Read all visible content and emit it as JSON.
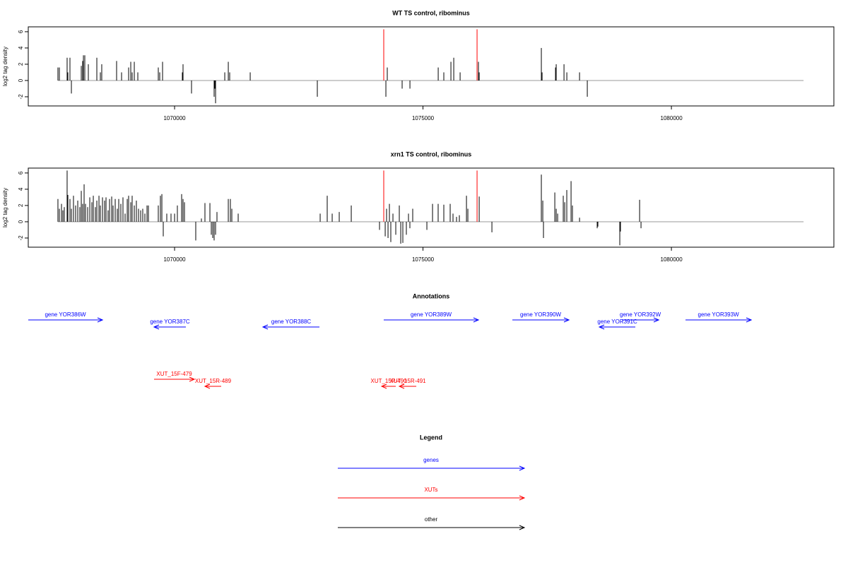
{
  "chart_data": [
    {
      "type": "spike",
      "title": "WT TS control, ribominus",
      "y_label": "log2 tag density",
      "xlim": [
        1067055,
        1083270
      ],
      "ylim": [
        -3.13,
        6.6
      ],
      "xticks": [
        1070000,
        1075000,
        1080000
      ],
      "yticks": [
        -2,
        0,
        2,
        4,
        6
      ],
      "baseline_x": [
        1067652,
        1082660
      ],
      "series": [
        {
          "color": "#000000",
          "x": [
            1067652,
            1067681,
            1067837,
            1067852,
            1067894,
            1067923,
            1068122,
            1068150,
            1068165,
            1068193,
            1068264,
            1068435,
            1068506,
            1068534,
            1068833,
            1068933,
            1069075,
            1069118,
            1069146,
            1069189,
            1069260,
            1069672,
            1069701,
            1069758,
            1070156,
            1070170,
            1070341,
            1070796,
            1070810,
            1070825,
            1071010,
            1071081,
            1071109,
            1071522,
            1072873,
            1074253,
            1074281,
            1074580,
            1074737,
            1075306,
            1075419,
            1075562,
            1075619,
            1075747,
            1076116,
            1076131,
            1077382,
            1077397,
            1077667,
            1077681,
            1077838,
            1077895,
            1078151,
            1078307
          ],
          "values": [
            1.6,
            1.6,
            2.8,
            1.0,
            2.8,
            -1.6,
            1.8,
            2.4,
            3.1,
            3.1,
            2.0,
            2.8,
            1.0,
            2.0,
            2.4,
            1.0,
            1.6,
            2.3,
            1.0,
            2.3,
            1.0,
            1.6,
            1.0,
            2.3,
            1.0,
            2.0,
            -1.6,
            -2.0,
            -1.0,
            -2.8,
            1.0,
            2.3,
            1.0,
            1.0,
            -2.0,
            -2.0,
            1.6,
            -1.0,
            -1.0,
            1.6,
            1.0,
            2.3,
            2.8,
            1.0,
            2.3,
            1.0,
            4.0,
            1.0,
            1.6,
            2.0,
            2.0,
            1.0,
            1.0,
            -2.0
          ]
        },
        {
          "color": "#ff0000",
          "x": [
            1074210,
            1076088
          ],
          "values": [
            6.3,
            6.3
          ]
        }
      ]
    },
    {
      "type": "spike",
      "title": "xrn1 TS control, ribominus",
      "y_label": "log2 tag density",
      "xlim": [
        1067055,
        1083270
      ],
      "ylim": [
        -3.13,
        6.6
      ],
      "xticks": [
        1070000,
        1075000,
        1080000
      ],
      "yticks": [
        -2,
        0,
        2,
        4,
        6
      ],
      "baseline_x": [
        1067652,
        1082660
      ],
      "series": [
        {
          "color": "#000000",
          "x": [
            1067652,
            1067681,
            1067724,
            1067752,
            1067780,
            1067837,
            1067852,
            1067894,
            1067923,
            1067965,
            1068008,
            1068051,
            1068093,
            1068122,
            1068150,
            1068179,
            1068207,
            1068250,
            1068293,
            1068335,
            1068364,
            1068406,
            1068435,
            1068478,
            1068506,
            1068549,
            1068591,
            1068620,
            1068662,
            1068691,
            1068734,
            1068762,
            1068805,
            1068847,
            1068876,
            1068918,
            1068961,
            1069004,
            1069047,
            1069075,
            1069118,
            1069146,
            1069189,
            1069231,
            1069274,
            1069317,
            1069359,
            1069402,
            1069445,
            1069473,
            1069672,
            1069715,
            1069744,
            1069772,
            1069843,
            1069928,
            1070000,
            1070056,
            1070142,
            1070170,
            1070199,
            1070426,
            1070540,
            1070611,
            1070711,
            1070739,
            1070768,
            1070796,
            1070825,
            1070853,
            1071081,
            1071123,
            1071152,
            1071280,
            1072930,
            1073072,
            1073172,
            1073314,
            1073556,
            1074125,
            1074239,
            1074267,
            1074296,
            1074324,
            1074352,
            1074395,
            1074452,
            1074523,
            1074552,
            1074594,
            1074665,
            1074708,
            1074736,
            1074793,
            1075078,
            1075192,
            1075305,
            1075419,
            1075547,
            1075604,
            1075675,
            1075732,
            1075875,
            1075903,
            1076131,
            1076387,
            1077382,
            1077411,
            1077425,
            1077653,
            1077681,
            1077710,
            1077823,
            1077852,
            1077894,
            1077980,
            1078008,
            1078151,
            1078506,
            1078520,
            1078961,
            1078975,
            1079360,
            1079388
          ],
          "values": [
            2.8,
            1.6,
            2.2,
            1.4,
            1.8,
            6.3,
            3.3,
            2.8,
            1.6,
            3.2,
            2.0,
            2.6,
            1.8,
            3.8,
            2.2,
            4.6,
            2.2,
            1.8,
            3.0,
            2.4,
            3.2,
            1.8,
            2.6,
            3.2,
            2.0,
            3.0,
            2.6,
            3.0,
            1.4,
            2.8,
            3.1,
            2.0,
            2.8,
            1.6,
            2.8,
            2.2,
            3.0,
            1.0,
            2.8,
            3.2,
            2.4,
            3.2,
            2.0,
            2.6,
            1.6,
            1.4,
            1.6,
            1.0,
            2.0,
            2.0,
            2.0,
            3.2,
            3.4,
            -1.8,
            1.0,
            1.0,
            1.0,
            2.0,
            3.4,
            2.8,
            2.4,
            -2.3,
            0.4,
            2.3,
            2.3,
            -1.6,
            -2.0,
            -2.3,
            -1.6,
            1.2,
            2.8,
            2.8,
            1.6,
            1.0,
            1.0,
            3.2,
            1.0,
            1.2,
            2.0,
            -1.0,
            -1.8,
            1.6,
            -2.0,
            2.2,
            -2.5,
            1.0,
            -1.6,
            2.0,
            -2.7,
            -2.6,
            -1.6,
            1.0,
            -0.8,
            1.6,
            -1.0,
            2.2,
            2.2,
            2.1,
            2.2,
            1.0,
            0.6,
            0.8,
            3.2,
            1.6,
            3.1,
            -1.3,
            5.8,
            2.6,
            -2.0,
            3.6,
            1.6,
            1.0,
            3.2,
            2.4,
            3.9,
            5.0,
            2.0,
            0.5,
            -0.8,
            -0.6,
            -2.9,
            -1.2,
            2.7,
            -0.8
          ]
        },
        {
          "color": "#ff0000",
          "x": [
            1074210,
            1076088
          ],
          "values": [
            6.3,
            6.3
          ]
        }
      ]
    },
    {
      "type": "annotation",
      "title": "Annotations",
      "features": [
        {
          "label": "gene YOR386W",
          "start": 1067055,
          "end": 1068549,
          "color": "#0000ff"
        },
        {
          "label": "gene YOR387C",
          "start": 1070227,
          "end": 1069587,
          "color": "#0000ff"
        },
        {
          "label": "gene YOR388C",
          "start": 1072916,
          "end": 1071778,
          "color": "#0000ff"
        },
        {
          "label": "gene YOR389W",
          "start": 1074210,
          "end": 1076116,
          "color": "#0000ff"
        },
        {
          "label": "gene YOR390W",
          "start": 1076799,
          "end": 1077937,
          "color": "#0000ff"
        },
        {
          "label": "gene YOR391C",
          "start": 1079274,
          "end": 1078549,
          "color": "#0000ff"
        },
        {
          "label": "gene YOR392W",
          "start": 1079004,
          "end": 1079744,
          "color": "#0000ff"
        },
        {
          "label": "gene YOR393W",
          "start": 1080284,
          "end": 1081607,
          "color": "#0000ff"
        },
        {
          "label": "XUT_15F-479",
          "start": 1069587,
          "end": 1070398,
          "color": "#ff0000"
        },
        {
          "label": "XUT_15R-489",
          "start": 1070938,
          "end": 1070611,
          "color": "#ff0000"
        },
        {
          "label": "XUT_15R-490",
          "start": 1074452,
          "end": 1074168,
          "color": "#ff0000"
        },
        {
          "label": "XUT_15R-491",
          "start": 1074865,
          "end": 1074523,
          "color": "#ff0000"
        }
      ]
    },
    {
      "type": "legend",
      "title": "Legend",
      "items": [
        {
          "name": "genes",
          "color": "#0000ff"
        },
        {
          "name": "XUTs",
          "color": "#ff0000"
        },
        {
          "name": "other",
          "color": "#000000"
        }
      ]
    }
  ]
}
